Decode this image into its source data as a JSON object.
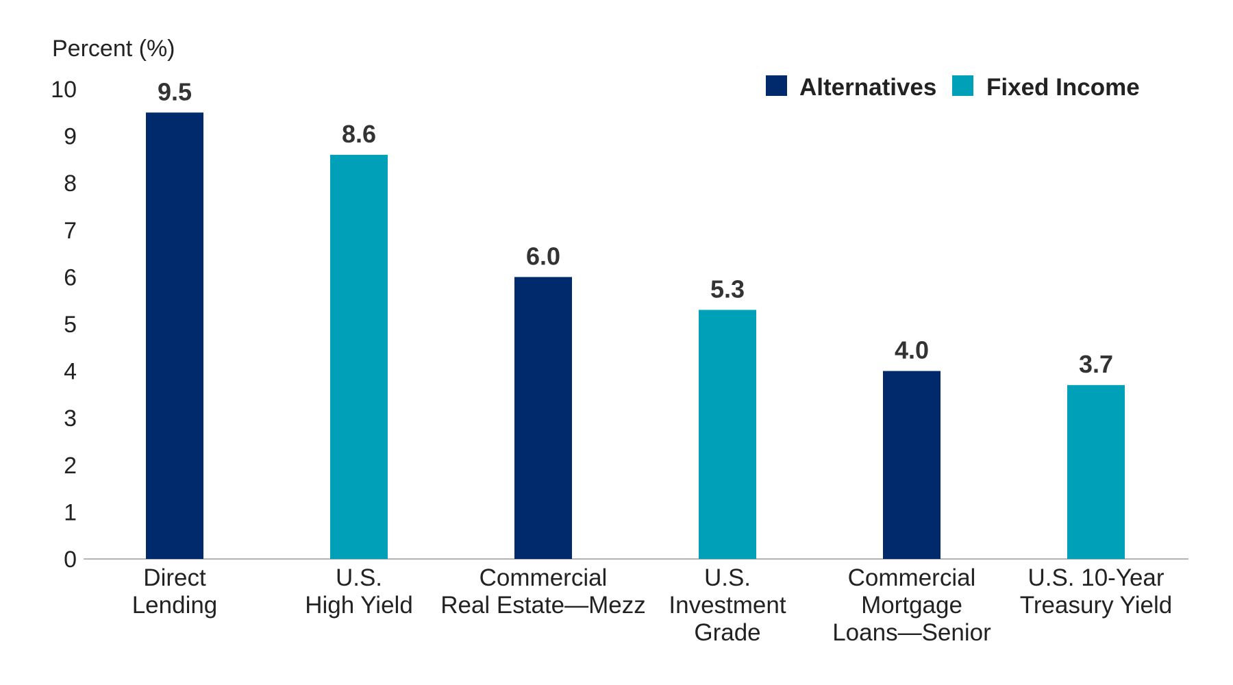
{
  "chart_data": {
    "type": "bar",
    "ylabel": "Percent (%)",
    "ylim": [
      0,
      10
    ],
    "yticks": [
      0,
      1,
      2,
      3,
      4,
      5,
      6,
      7,
      8,
      9,
      10
    ],
    "grid": false,
    "legend_position": "top-right",
    "categories": [
      [
        "Direct",
        "Lending"
      ],
      [
        "U.S.",
        "High Yield"
      ],
      [
        "Commercial",
        "Real Estate—Mezz"
      ],
      [
        "U.S.",
        "Investment",
        "Grade"
      ],
      [
        "Commercial",
        "Mortgage",
        "Loans—Senior"
      ],
      [
        "U.S. 10-Year",
        "Treasury Yield"
      ]
    ],
    "values": [
      9.5,
      8.6,
      6.0,
      5.3,
      4.0,
      3.7
    ],
    "value_labels": [
      "9.5",
      "8.6",
      "6.0",
      "5.3",
      "4.0",
      "3.7"
    ],
    "bar_series": [
      0,
      1,
      0,
      1,
      0,
      1
    ],
    "series": [
      {
        "name": "Alternatives",
        "color": "#002a6b"
      },
      {
        "name": "Fixed Income",
        "color": "#00a0b8"
      }
    ],
    "axis_color": "#b3b3b3"
  }
}
